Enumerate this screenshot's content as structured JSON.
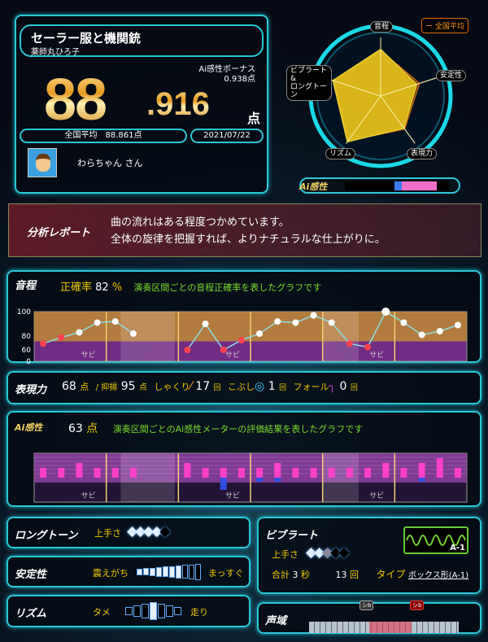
{
  "score": {
    "song": "セーラー服と機関銃",
    "artist": "薬師丸ひろ子",
    "bonus_label": "Ai感性ボーナス",
    "bonus_value": "0.938点",
    "integer": "88",
    "decimal": ".916",
    "unit": "点",
    "national_avg": "全国平均　88.861点",
    "date": "2021/07/22",
    "user": "わらちゃん さん"
  },
  "radar": {
    "labels": [
      "音程",
      "安定性",
      "表現力",
      "リズム",
      "ビブラート&\nロングトーン"
    ],
    "values": [
      0.8,
      0.65,
      0.68,
      0.97,
      0.86
    ],
    "average": [
      0.78,
      0.7,
      0.7,
      0.95,
      0.84
    ],
    "legend": "ー 全国平均",
    "ai_label": "Ai感性",
    "ai_meter": {
      "blue": [
        0.48,
        0.55
      ],
      "pink": [
        0.55,
        0.88
      ]
    }
  },
  "report": {
    "title": "分析レポート",
    "line1": "曲の流れはある程度つかめています。",
    "line2": "全体の旋律を把握すれば、よりナチュラルな仕上がりに。"
  },
  "pitch": {
    "title": "音程",
    "rate_label": "正確率",
    "rate": "82",
    "rate_unit": "%",
    "desc": "演奏区間ごとの音程正確率を表したグラフです",
    "sabi": "サビ"
  },
  "chart_data": [
    {
      "type": "line",
      "title": "音程",
      "yticks": [
        "100",
        "80",
        "60",
        "0"
      ],
      "x": [
        0,
        1,
        2,
        3,
        4,
        5,
        8,
        9,
        10,
        11,
        12,
        13,
        14,
        15,
        16,
        17,
        18,
        19,
        20,
        21,
        22,
        23
      ],
      "values": [
        69,
        78,
        83,
        91,
        92,
        82,
        60,
        90,
        60,
        74,
        82,
        92,
        91,
        97,
        91,
        69,
        64,
        100,
        91,
        81,
        84,
        89
      ],
      "colors": {
        "good": "#ffffff",
        "bad": "#ff4050"
      },
      "sections": 6,
      "sabi_sections": [
        1,
        3,
        5
      ]
    },
    {
      "type": "bar",
      "title": "Ai感性",
      "x": [
        0,
        1,
        2,
        3,
        4,
        5,
        8,
        9,
        10,
        11,
        12,
        13,
        14,
        15,
        16,
        17,
        18,
        19,
        20,
        21,
        22,
        23
      ],
      "positive": [
        1,
        1,
        2,
        1,
        1,
        1,
        2,
        1,
        1,
        1,
        1,
        2,
        1,
        1,
        1,
        1,
        1,
        2,
        1,
        2,
        3,
        1
      ],
      "negative": [
        0,
        0,
        0,
        0,
        0,
        0,
        0,
        0,
        3,
        0,
        1,
        1,
        0,
        0,
        0,
        0,
        0,
        0,
        0,
        1,
        0,
        0
      ],
      "colors": {
        "positive": "#ff40c8",
        "negative": "#3050e0"
      }
    }
  ],
  "expression": {
    "title": "表現力",
    "score": "68",
    "unit": "点",
    "yokuyo_label": "/ 抑揚",
    "yokuyo": "95",
    "shakuri_label": "しゃくり",
    "shakuri": "17",
    "kobushi_label": "こぶし",
    "kobushi": "1",
    "fall_label": "フォール",
    "fall": "0",
    "times": "回"
  },
  "ai": {
    "title": "Ai感性",
    "score": "63",
    "unit": "点",
    "desc": "演奏区間ごとのAi感性メーターの評価結果を表したグラフです"
  },
  "longtone": {
    "title": "ロングトーン",
    "skill_label": "上手さ",
    "skill": 4,
    "max": 5
  },
  "stability": {
    "title": "安定性",
    "left": "震えがち",
    "right": "まっすぐ",
    "level": 7,
    "max": 10
  },
  "rhythm": {
    "title": "リズム",
    "left": "タメ",
    "right": "走り",
    "position": 0
  },
  "vibrato": {
    "title": "ビブラート",
    "skill_label": "上手さ",
    "skill": 2.5,
    "max": 5,
    "total_label": "合計",
    "seconds": "3",
    "sec_unit": "秒",
    "count": "13",
    "count_unit": "回",
    "type_label": "タイプ",
    "type": "ボックス形(A-1)",
    "type_code": "A-1"
  },
  "range": {
    "title": "声域",
    "low": "シb",
    "high": "シb"
  }
}
